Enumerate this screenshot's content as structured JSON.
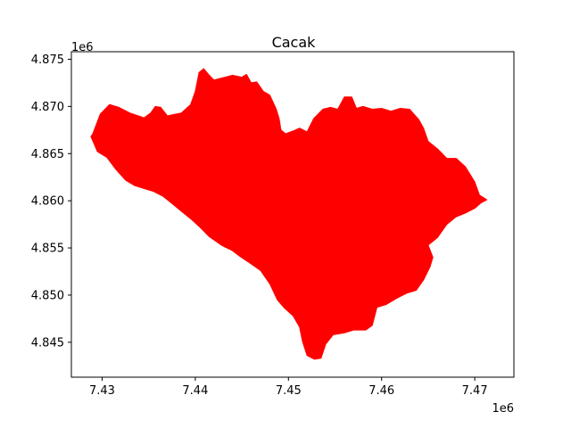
{
  "chart_data": {
    "type": "map",
    "title": "Cacak",
    "x_offset_label": "1e6",
    "y_offset_label": "1e6",
    "xlim": [
      7.4267,
      7.4742
    ],
    "ylim": [
      4.8413,
      4.8758
    ],
    "x_ticks": [
      {
        "value": 7.43,
        "label": "7.43"
      },
      {
        "value": 7.44,
        "label": "7.44"
      },
      {
        "value": 7.45,
        "label": "7.45"
      },
      {
        "value": 7.46,
        "label": "7.46"
      },
      {
        "value": 7.47,
        "label": "7.47"
      }
    ],
    "y_ticks": [
      {
        "value": 4.845,
        "label": "4.845"
      },
      {
        "value": 4.85,
        "label": "4.850"
      },
      {
        "value": 4.855,
        "label": "4.855"
      },
      {
        "value": 4.86,
        "label": "4.860"
      },
      {
        "value": 4.865,
        "label": "4.865"
      },
      {
        "value": 4.87,
        "label": "4.870"
      },
      {
        "value": 4.875,
        "label": "4.875"
      }
    ],
    "region": {
      "fill": "#ff0000",
      "boundary": [
        [
          7.429,
          4.8671
        ],
        [
          7.4298,
          4.8692
        ],
        [
          7.4308,
          4.8702
        ],
        [
          7.4318,
          4.8699
        ],
        [
          7.433,
          4.8693
        ],
        [
          7.4345,
          4.8688
        ],
        [
          7.4352,
          4.8693
        ],
        [
          7.4357,
          4.87
        ],
        [
          7.4363,
          4.8699
        ],
        [
          7.437,
          4.869
        ],
        [
          7.4385,
          4.8693
        ],
        [
          7.4395,
          4.8702
        ],
        [
          7.44,
          4.8716
        ],
        [
          7.4404,
          4.8736
        ],
        [
          7.4409,
          4.874
        ],
        [
          7.4415,
          4.8733
        ],
        [
          7.442,
          4.8728
        ],
        [
          7.4428,
          4.873
        ],
        [
          7.444,
          4.8733
        ],
        [
          7.445,
          4.8731
        ],
        [
          7.4455,
          4.8734
        ],
        [
          7.446,
          4.8725
        ],
        [
          7.4466,
          4.8726
        ],
        [
          7.4473,
          4.8716
        ],
        [
          7.448,
          4.8712
        ],
        [
          7.4487,
          4.8697
        ],
        [
          7.449,
          4.8687
        ],
        [
          7.4492,
          4.8675
        ],
        [
          7.4497,
          4.8671
        ],
        [
          7.4505,
          4.8674
        ],
        [
          7.4512,
          4.8677
        ],
        [
          7.452,
          4.8673
        ],
        [
          7.4527,
          4.8687
        ],
        [
          7.4537,
          4.8697
        ],
        [
          7.4545,
          4.8699
        ],
        [
          7.4553,
          4.8697
        ],
        [
          7.456,
          4.871
        ],
        [
          7.4568,
          4.871
        ],
        [
          7.4573,
          4.8698
        ],
        [
          7.458,
          4.87
        ],
        [
          7.459,
          4.8697
        ],
        [
          7.46,
          4.8698
        ],
        [
          7.461,
          4.8695
        ],
        [
          7.462,
          4.8698
        ],
        [
          7.463,
          4.8697
        ],
        [
          7.464,
          4.8686
        ],
        [
          7.4645,
          4.8677
        ],
        [
          7.465,
          4.8663
        ],
        [
          7.466,
          4.8655
        ],
        [
          7.467,
          4.8645
        ],
        [
          7.468,
          4.8645
        ],
        [
          7.469,
          4.8636
        ],
        [
          7.47,
          4.862
        ],
        [
          7.4705,
          4.8606
        ],
        [
          7.4713,
          4.8601
        ],
        [
          7.4707,
          4.8598
        ],
        [
          7.47,
          4.8592
        ],
        [
          7.469,
          4.8587
        ],
        [
          7.468,
          4.8583
        ],
        [
          7.467,
          4.8575
        ],
        [
          7.466,
          4.8561
        ],
        [
          7.465,
          4.8553
        ],
        [
          7.4655,
          4.854
        ],
        [
          7.4652,
          4.853
        ],
        [
          7.4645,
          4.8516
        ],
        [
          7.4637,
          4.8505
        ],
        [
          7.4627,
          4.8502
        ],
        [
          7.4617,
          4.8497
        ],
        [
          7.4605,
          4.849
        ],
        [
          7.4595,
          4.8487
        ],
        [
          7.459,
          4.8468
        ],
        [
          7.4583,
          4.8463
        ],
        [
          7.457,
          4.8463
        ],
        [
          7.456,
          4.846
        ],
        [
          7.4548,
          4.8458
        ],
        [
          7.454,
          4.8448
        ],
        [
          7.4535,
          4.8433
        ],
        [
          7.4528,
          4.8432
        ],
        [
          7.452,
          4.8436
        ],
        [
          7.4515,
          4.8451
        ],
        [
          7.4512,
          4.8466
        ],
        [
          7.4505,
          4.8478
        ],
        [
          7.4495,
          4.8487
        ],
        [
          7.4488,
          4.8495
        ],
        [
          7.448,
          4.8512
        ],
        [
          7.447,
          4.8526
        ],
        [
          7.446,
          4.8533
        ],
        [
          7.4448,
          4.8541
        ],
        [
          7.444,
          4.8547
        ],
        [
          7.4428,
          4.8553
        ],
        [
          7.4415,
          4.8562
        ],
        [
          7.4405,
          4.8572
        ],
        [
          7.4395,
          4.8581
        ],
        [
          7.4385,
          4.8589
        ],
        [
          7.4375,
          4.8597
        ],
        [
          7.4365,
          4.8605
        ],
        [
          7.4355,
          4.861
        ],
        [
          7.4345,
          4.8613
        ],
        [
          7.4335,
          4.8616
        ],
        [
          7.4325,
          4.8622
        ],
        [
          7.4315,
          4.8633
        ],
        [
          7.4305,
          4.8646
        ],
        [
          7.4295,
          4.8652
        ],
        [
          7.4288,
          4.8668
        ],
        [
          7.429,
          4.8671
        ]
      ]
    }
  }
}
